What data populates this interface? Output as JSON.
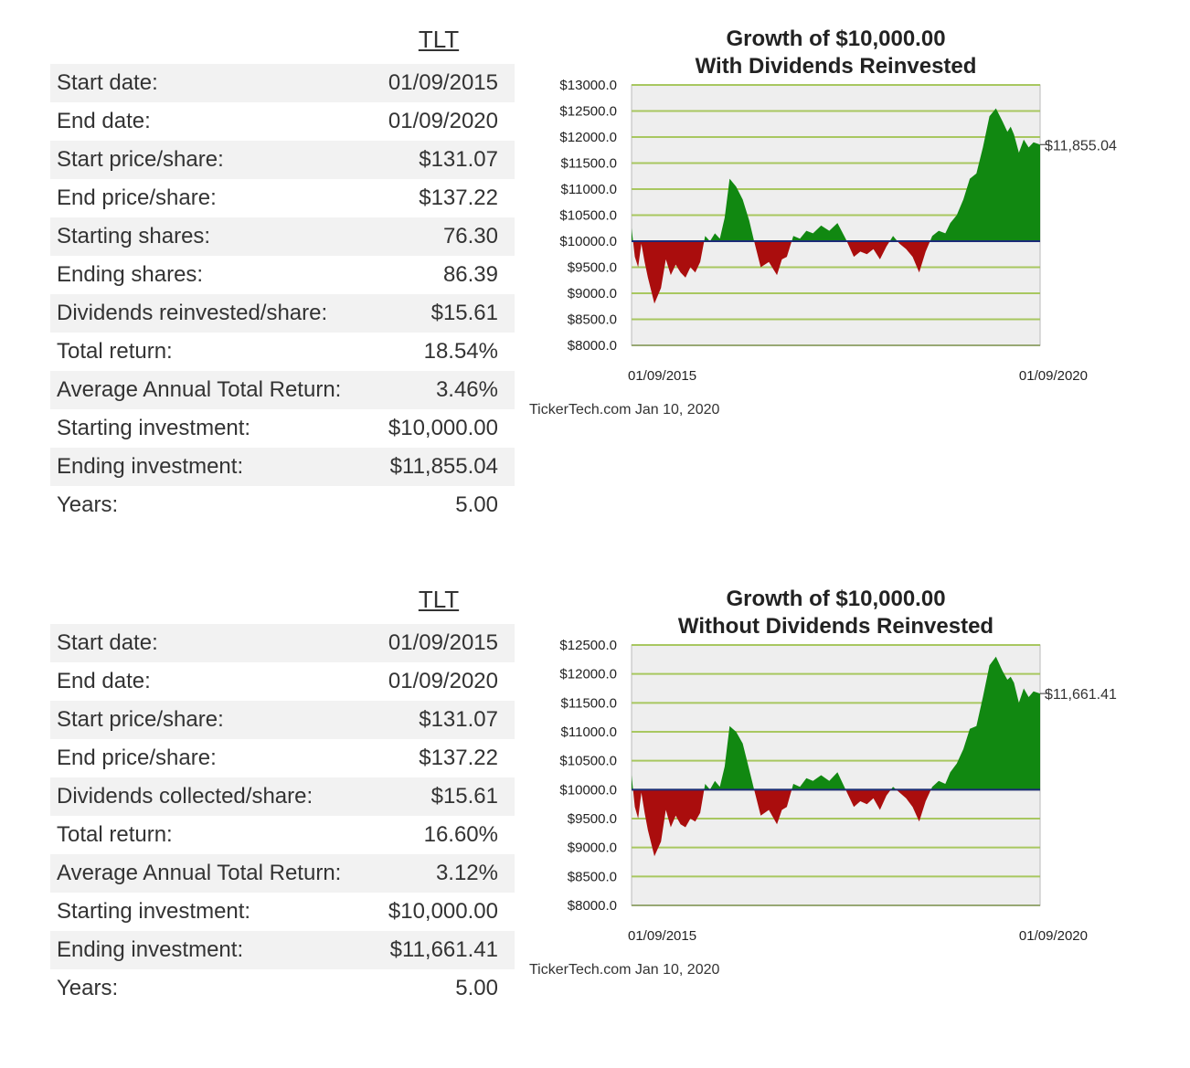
{
  "sections": [
    {
      "ticker": "TLT",
      "rows": [
        {
          "label": "Start date:",
          "value": "01/09/2015"
        },
        {
          "label": "End date:",
          "value": "01/09/2020"
        },
        {
          "label": "Start price/share:",
          "value": "$131.07"
        },
        {
          "label": "End price/share:",
          "value": "$137.22"
        },
        {
          "label": "Starting shares:",
          "value": "76.30"
        },
        {
          "label": "Ending shares:",
          "value": "86.39"
        },
        {
          "label": "Dividends reinvested/share:",
          "value": "$15.61"
        },
        {
          "label": "Total return:",
          "value": "18.54%"
        },
        {
          "label": "Average Annual Total Return:",
          "value": "3.46%"
        },
        {
          "label": "Starting investment:",
          "value": "$10,000.00"
        },
        {
          "label": "Ending investment:",
          "value": "$11,855.04"
        },
        {
          "label": "Years:",
          "value": "5.00"
        }
      ]
    },
    {
      "ticker": "TLT",
      "rows": [
        {
          "label": "Start date:",
          "value": "01/09/2015"
        },
        {
          "label": "End date:",
          "value": "01/09/2020"
        },
        {
          "label": "Start price/share:",
          "value": "$131.07"
        },
        {
          "label": "End price/share:",
          "value": "$137.22"
        },
        {
          "label": "Dividends collected/share:",
          "value": "$15.61"
        },
        {
          "label": "Total return:",
          "value": "16.60%"
        },
        {
          "label": "Average Annual Total Return:",
          "value": "3.12%"
        },
        {
          "label": "Starting investment:",
          "value": "$10,000.00"
        },
        {
          "label": "Ending investment:",
          "value": "$11,661.41"
        },
        {
          "label": "Years:",
          "value": "5.00"
        }
      ]
    }
  ],
  "chart_data": [
    {
      "type": "area",
      "title": "Growth of $10,000.00",
      "subtitle": "With Dividends Reinvested",
      "xlabel": "",
      "ylabel": "",
      "baseline": 10000,
      "ylim": [
        8000,
        13000
      ],
      "yticks": [
        13000,
        12500,
        12000,
        11500,
        11000,
        10500,
        10000,
        9500,
        9000,
        8500,
        8000
      ],
      "ytick_labels": [
        "$13000.0",
        "$12500.0",
        "$12000.0",
        "$11500.0",
        "$11000.0",
        "$10500.0",
        "$10000.0",
        "$9500.0",
        "$9000.0",
        "$8500.0",
        "$8000.0"
      ],
      "xlim": [
        2015.02,
        2020.02
      ],
      "xtick_labels": [
        "01/09/2015",
        "01/09/2020"
      ],
      "end_label": "$11,855.04",
      "positive_color": "#118811",
      "negative_color": "#aa0d0d",
      "grid": true,
      "credit": "TickerTech.com  Jan 10, 2020",
      "x": [
        2015.02,
        2015.06,
        2015.1,
        2015.14,
        2015.18,
        2015.22,
        2015.3,
        2015.38,
        2015.44,
        2015.5,
        2015.56,
        2015.62,
        2015.68,
        2015.74,
        2015.8,
        2015.86,
        2015.92,
        2015.98,
        2016.04,
        2016.1,
        2016.16,
        2016.22,
        2016.3,
        2016.38,
        2016.46,
        2016.52,
        2016.6,
        2016.7,
        2016.8,
        2016.86,
        2016.92,
        2017.0,
        2017.08,
        2017.16,
        2017.24,
        2017.34,
        2017.44,
        2017.54,
        2017.64,
        2017.74,
        2017.82,
        2017.9,
        2017.98,
        2018.06,
        2018.14,
        2018.22,
        2018.3,
        2018.38,
        2018.46,
        2018.54,
        2018.62,
        2018.7,
        2018.78,
        2018.86,
        2018.92,
        2019.0,
        2019.08,
        2019.16,
        2019.24,
        2019.32,
        2019.4,
        2019.48,
        2019.56,
        2019.62,
        2019.66,
        2019.7,
        2019.76,
        2019.82,
        2019.88,
        2019.94,
        2020.02
      ],
      "y": [
        10250,
        9700,
        9500,
        9950,
        9600,
        9300,
        8800,
        9100,
        9650,
        9350,
        9550,
        9400,
        9300,
        9500,
        9400,
        9600,
        10100,
        10000,
        10150,
        10050,
        10450,
        11200,
        11050,
        10800,
        10400,
        10000,
        9500,
        9600,
        9350,
        9650,
        9700,
        10100,
        10050,
        10200,
        10150,
        10300,
        10200,
        10350,
        10050,
        9700,
        9800,
        9750,
        9850,
        9650,
        9900,
        10100,
        9950,
        9850,
        9700,
        9400,
        9800,
        10100,
        10200,
        10150,
        10350,
        10500,
        10800,
        11200,
        11300,
        11800,
        12400,
        12550,
        12300,
        12100,
        12200,
        12050,
        11700,
        11950,
        11800,
        11900,
        11855.04
      ]
    },
    {
      "type": "area",
      "title": "Growth of $10,000.00",
      "subtitle": "Without Dividends Reinvested",
      "xlabel": "",
      "ylabel": "",
      "baseline": 10000,
      "ylim": [
        8000,
        12500
      ],
      "yticks": [
        12500,
        12000,
        11500,
        11000,
        10500,
        10000,
        9500,
        9000,
        8500,
        8000
      ],
      "ytick_labels": [
        "$12500.0",
        "$12000.0",
        "$11500.0",
        "$11000.0",
        "$10500.0",
        "$10000.0",
        "$9500.0",
        "$9000.0",
        "$8500.0",
        "$8000.0"
      ],
      "xlim": [
        2015.02,
        2020.02
      ],
      "xtick_labels": [
        "01/09/2015",
        "01/09/2020"
      ],
      "end_label": "$11,661.41",
      "positive_color": "#118811",
      "negative_color": "#aa0d0d",
      "grid": true,
      "credit": "TickerTech.com  Jan 10, 2020",
      "x": [
        2015.02,
        2015.06,
        2015.1,
        2015.14,
        2015.18,
        2015.22,
        2015.3,
        2015.38,
        2015.44,
        2015.5,
        2015.56,
        2015.62,
        2015.68,
        2015.74,
        2015.8,
        2015.86,
        2015.92,
        2015.98,
        2016.04,
        2016.1,
        2016.16,
        2016.22,
        2016.3,
        2016.38,
        2016.46,
        2016.52,
        2016.6,
        2016.7,
        2016.8,
        2016.86,
        2016.92,
        2017.0,
        2017.08,
        2017.16,
        2017.24,
        2017.34,
        2017.44,
        2017.54,
        2017.64,
        2017.74,
        2017.82,
        2017.9,
        2017.98,
        2018.06,
        2018.14,
        2018.22,
        2018.3,
        2018.38,
        2018.46,
        2018.54,
        2018.62,
        2018.7,
        2018.78,
        2018.86,
        2018.92,
        2019.0,
        2019.08,
        2019.16,
        2019.24,
        2019.32,
        2019.4,
        2019.48,
        2019.56,
        2019.62,
        2019.66,
        2019.7,
        2019.76,
        2019.82,
        2019.88,
        2019.94,
        2020.02
      ],
      "y": [
        10250,
        9700,
        9500,
        9950,
        9600,
        9300,
        8850,
        9100,
        9650,
        9350,
        9550,
        9400,
        9350,
        9500,
        9450,
        9600,
        10100,
        10000,
        10150,
        10050,
        10400,
        11100,
        11000,
        10800,
        10350,
        10000,
        9550,
        9650,
        9400,
        9650,
        9700,
        10100,
        10050,
        10200,
        10150,
        10250,
        10150,
        10300,
        10000,
        9700,
        9800,
        9750,
        9850,
        9650,
        9900,
        10050,
        9950,
        9850,
        9700,
        9450,
        9800,
        10050,
        10150,
        10100,
        10300,
        10450,
        10700,
        11050,
        11100,
        11600,
        12150,
        12300,
        12050,
        11900,
        11950,
        11850,
        11500,
        11750,
        11600,
        11700,
        11661.41
      ]
    }
  ]
}
